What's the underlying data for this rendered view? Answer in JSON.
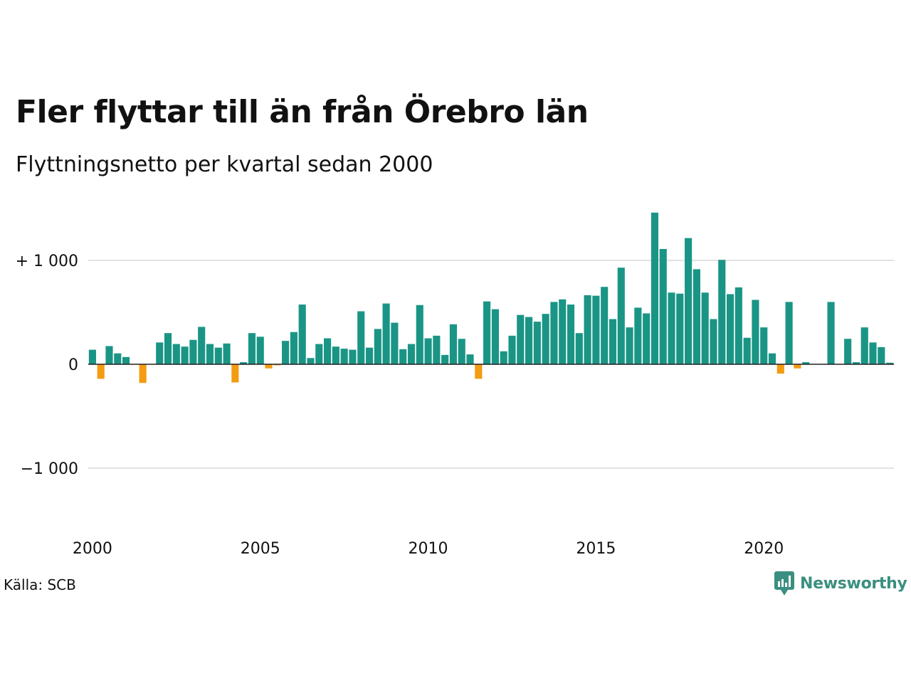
{
  "title": "Fler flyttar till än från Örebro län",
  "subtitle": "Flyttningsnetto per kvartal sedan 2000",
  "source": "Källa: SCB",
  "brand": "Newsworthy",
  "colors": {
    "positive": "#1a9585",
    "negative": "#f39c12",
    "grid": "#e3e3e3",
    "zero": "#222222",
    "brand": "#3a8f80"
  },
  "chart_data": {
    "type": "bar",
    "x_start": "2000 Q1",
    "frequency": "quarter",
    "y_ticks": [
      {
        "value": 1000,
        "label": "+ 1 000"
      },
      {
        "value": 0,
        "label": "0"
      },
      {
        "value": -1000,
        "label": "−1 000"
      }
    ],
    "x_ticks": [
      {
        "index": 0,
        "label": "2000"
      },
      {
        "index": 20,
        "label": "2005"
      },
      {
        "index": 40,
        "label": "2010"
      },
      {
        "index": 60,
        "label": "2015"
      },
      {
        "index": 80,
        "label": "2020"
      }
    ],
    "ylim": [
      -1600,
      1500
    ],
    "values": [
      140,
      -140,
      175,
      105,
      70,
      0,
      -180,
      0,
      210,
      300,
      195,
      170,
      235,
      360,
      195,
      160,
      200,
      -175,
      20,
      300,
      265,
      -40,
      -10,
      225,
      310,
      575,
      60,
      195,
      250,
      170,
      150,
      140,
      510,
      160,
      340,
      585,
      400,
      145,
      195,
      570,
      250,
      275,
      90,
      385,
      245,
      95,
      -140,
      605,
      530,
      125,
      275,
      475,
      455,
      410,
      485,
      600,
      625,
      575,
      300,
      665,
      660,
      745,
      435,
      930,
      355,
      545,
      490,
      1460,
      1110,
      690,
      680,
      1215,
      915,
      690,
      435,
      1005,
      675,
      740,
      255,
      620,
      355,
      105,
      -90,
      600,
      -40,
      20,
      0,
      0,
      600,
      0,
      245,
      20,
      355,
      210,
      165,
      15
    ]
  }
}
